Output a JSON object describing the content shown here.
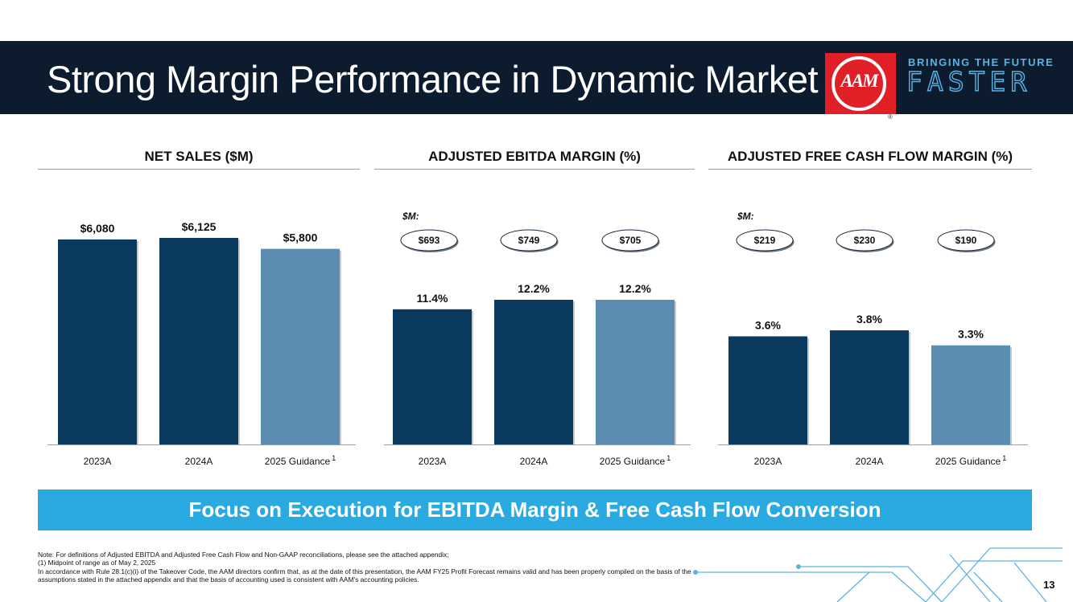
{
  "slide": {
    "title": "Strong Margin Performance in Dynamic Market",
    "logo_text": "AAM",
    "registered": "®",
    "tagline_line1": "BRINGING THE FUTURE",
    "tagline_line2": "FASTER",
    "banner": "Focus on Execution for EBITDA Margin & Free Cash Flow Conversion",
    "notes": [
      "Note: For definitions of Adjusted EBITDA and Adjusted Free Cash Flow and Non-GAAP reconciliations, please see the attached appendix;",
      "(1) Midpoint of range as of May 2, 2025",
      "In accordance with Rule 28.1(c)(i) of the Takeover Code, the AAM directors confirm that, as at the date of this presentation, the AAM FY25 Profit Forecast remains valid and has been properly compiled on the basis of the assumptions stated in the attached appendix and that the basis of accounting used is consistent with AAM's accounting policies."
    ],
    "page_number": "13"
  },
  "colors": {
    "header_bg": "#0c1b2e",
    "bar_actual": "#0a3a5e",
    "bar_guidance": "#5a8db0",
    "banner_bg": "#29aae1",
    "logo_red": "#e11f26",
    "accent_light": "#5ab3e3"
  },
  "chart_data": [
    {
      "type": "bar",
      "title": "NET SALES ($M)",
      "categories": [
        "2023A",
        "2024A",
        "2025 Guidance"
      ],
      "footnote_marks": [
        "",
        "",
        "1"
      ],
      "values": [
        6080,
        6125,
        5800
      ],
      "value_labels": [
        "$6,080",
        "$6,125",
        "$5,800"
      ],
      "highlight": [
        false,
        false,
        true
      ],
      "secondary_label": "",
      "secondary_values": []
    },
    {
      "type": "bar",
      "title": "ADJUSTED EBITDA MARGIN (%)",
      "categories": [
        "2023A",
        "2024A",
        "2025 Guidance"
      ],
      "footnote_marks": [
        "",
        "",
        "1"
      ],
      "values": [
        11.4,
        12.2,
        12.2
      ],
      "value_labels": [
        "11.4%",
        "12.2%",
        "12.2%"
      ],
      "highlight": [
        false,
        false,
        true
      ],
      "secondary_label": "$M:",
      "secondary_values": [
        "$693",
        "$749",
        "$705"
      ]
    },
    {
      "type": "bar",
      "title": "ADJUSTED FREE CASH FLOW MARGIN (%)",
      "categories": [
        "2023A",
        "2024A",
        "2025 Guidance"
      ],
      "footnote_marks": [
        "",
        "",
        "1"
      ],
      "values": [
        3.6,
        3.8,
        3.3
      ],
      "value_labels": [
        "3.6%",
        "3.8%",
        "3.3%"
      ],
      "highlight": [
        false,
        false,
        true
      ],
      "secondary_label": "$M:",
      "secondary_values": [
        "$219",
        "$230",
        "$190"
      ]
    }
  ]
}
